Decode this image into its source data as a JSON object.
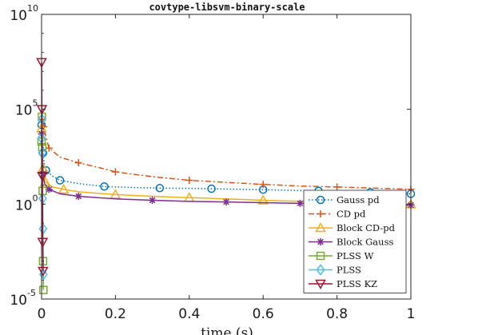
{
  "chart_data": {
    "type": "line",
    "title": "covtype-libsvm-binary-scale",
    "xlabel": "time (s)",
    "ylabel": "",
    "xlim": [
      0,
      1
    ],
    "ylim_log10": [
      -5,
      10
    ],
    "yscale": "log",
    "grid": false,
    "legend_position": "bottom-right",
    "x_ticks": [
      "0",
      "0.2",
      "0.4",
      "0.6",
      "0.8",
      "1"
    ],
    "y_ticks": [
      {
        "base": "10",
        "exp": "-5"
      },
      {
        "base": "10",
        "exp": "0"
      },
      {
        "base": "10",
        "exp": "5"
      },
      {
        "base": "10",
        "exp": "10"
      }
    ],
    "series": [
      {
        "name": "Gauss pd",
        "color": "#0072bd",
        "marker": "circle",
        "line": "dotted",
        "x": [
          0,
          0.002,
          0.004,
          0.007,
          0.012,
          0.03,
          0.05,
          0.1,
          0.17,
          0.25,
          0.32,
          0.4,
          0.46,
          0.55,
          0.6,
          0.7,
          0.75,
          0.85,
          0.89,
          0.95,
          1.0
        ],
        "y": [
          15000.0,
          3000.0,
          500,
          150,
          60,
          30,
          18,
          12,
          8.5,
          7.5,
          7,
          6.8,
          6.5,
          6,
          5.8,
          5.2,
          5,
          4.5,
          4.2,
          3.8,
          3.5
        ]
      },
      {
        "name": "CD pd",
        "color": "#d95319",
        "marker": "plus",
        "line": "dashdot",
        "x": [
          0,
          0.003,
          0.006,
          0.01,
          0.02,
          0.05,
          0.1,
          0.15,
          0.2,
          0.3,
          0.4,
          0.5,
          0.6,
          0.7,
          0.8,
          0.9,
          1.0
        ],
        "y": [
          30000.0,
          20000.0,
          12000.0,
          5000,
          900,
          300,
          150,
          90,
          50,
          28,
          18,
          14,
          11,
          9,
          8,
          7,
          6
        ]
      },
      {
        "name": "Block CD-pd",
        "color": "#edb120",
        "marker": "triangle-up",
        "line": "solid",
        "x": [
          0,
          0.002,
          0.004,
          0.006,
          0.01,
          0.03,
          0.06,
          0.1,
          0.2,
          0.3,
          0.4,
          0.5,
          0.6,
          0.7,
          0.8,
          0.9,
          1.0
        ],
        "y": [
          10000.0,
          800,
          80,
          30,
          15,
          8,
          6,
          4.5,
          3.2,
          2.6,
          2.2,
          1.9,
          1.6,
          1.4,
          1.2,
          1.1,
          1.0
        ]
      },
      {
        "name": "Block Gauss",
        "color": "#7e2f8e",
        "marker": "asterisk",
        "line": "solid",
        "x": [
          0,
          0.002,
          0.004,
          0.008,
          0.02,
          0.05,
          0.1,
          0.2,
          0.3,
          0.4,
          0.5,
          0.6,
          0.7,
          0.8,
          0.9,
          1.0
        ],
        "y": [
          5000.0,
          400,
          40,
          12,
          6,
          3.5,
          2.6,
          1.9,
          1.6,
          1.4,
          1.3,
          1.2,
          1.1,
          1.0,
          0.95,
          0.9
        ]
      },
      {
        "name": "PLSS W",
        "color": "#77ac30",
        "marker": "square",
        "line": "solid",
        "x": [
          0,
          0.001,
          0.002,
          0.003,
          0.004,
          0.005
        ],
        "y": [
          2000.0,
          40000.0,
          1000.0,
          5,
          0.001,
          3e-05
        ]
      },
      {
        "name": "PLSS",
        "color": "#4dbeee",
        "marker": "diamond",
        "line": "solid",
        "x": [
          0,
          0.001,
          0.002,
          0.003,
          0.004,
          0.005
        ],
        "y": [
          3000.0,
          30000.0,
          500,
          2,
          0.05,
          0.0002
        ]
      },
      {
        "name": "PLSS KZ",
        "color": "#a2142f",
        "marker": "triangle-down",
        "line": "solid",
        "x": [
          0,
          0.001,
          0.002,
          0.003,
          0.004
        ],
        "y": [
          30000000.0,
          100000.0,
          30,
          0.01,
          0.0003
        ]
      }
    ]
  }
}
